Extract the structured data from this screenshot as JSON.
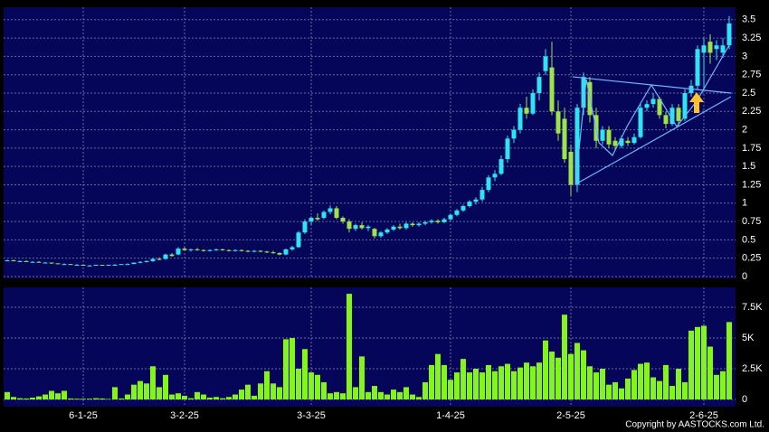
{
  "chart_data": [
    {
      "type": "candlestick",
      "up_color": "#2fe3f2",
      "down_color": "#9ee34a",
      "ylim": [
        -0.025,
        3.67
      ],
      "yticks": [
        0,
        0.25,
        0.5,
        0.75,
        1,
        1.25,
        1.5,
        1.75,
        2,
        2.25,
        2.5,
        2.75,
        3,
        3.25,
        3.5
      ],
      "grid": true,
      "ohlc": [
        [
          0.22,
          0.23,
          0.21,
          0.22
        ],
        [
          0.22,
          0.23,
          0.21,
          0.21
        ],
        [
          0.21,
          0.22,
          0.2,
          0.21
        ],
        [
          0.21,
          0.22,
          0.2,
          0.2
        ],
        [
          0.2,
          0.21,
          0.19,
          0.2
        ],
        [
          0.2,
          0.21,
          0.19,
          0.19
        ],
        [
          0.19,
          0.2,
          0.18,
          0.19
        ],
        [
          0.19,
          0.19,
          0.17,
          0.18
        ],
        [
          0.18,
          0.18,
          0.17,
          0.17
        ],
        [
          0.17,
          0.18,
          0.16,
          0.17
        ],
        [
          0.17,
          0.17,
          0.16,
          0.16
        ],
        [
          0.16,
          0.17,
          0.15,
          0.16
        ],
        [
          0.16,
          0.16,
          0.15,
          0.15
        ],
        [
          0.15,
          0.16,
          0.15,
          0.15
        ],
        [
          0.15,
          0.16,
          0.15,
          0.16
        ],
        [
          0.16,
          0.16,
          0.15,
          0.15
        ],
        [
          0.15,
          0.16,
          0.15,
          0.16
        ],
        [
          0.16,
          0.17,
          0.15,
          0.16
        ],
        [
          0.16,
          0.17,
          0.16,
          0.17
        ],
        [
          0.17,
          0.18,
          0.16,
          0.17
        ],
        [
          0.17,
          0.19,
          0.17,
          0.19
        ],
        [
          0.19,
          0.21,
          0.18,
          0.2
        ],
        [
          0.2,
          0.22,
          0.19,
          0.21
        ],
        [
          0.21,
          0.25,
          0.2,
          0.24
        ],
        [
          0.24,
          0.26,
          0.22,
          0.23
        ],
        [
          0.24,
          0.31,
          0.23,
          0.3
        ],
        [
          0.3,
          0.32,
          0.27,
          0.28
        ],
        [
          0.3,
          0.4,
          0.29,
          0.38
        ],
        [
          0.38,
          0.4,
          0.35,
          0.36
        ],
        [
          0.36,
          0.38,
          0.34,
          0.37
        ],
        [
          0.37,
          0.39,
          0.35,
          0.36
        ],
        [
          0.36,
          0.37,
          0.34,
          0.35
        ],
        [
          0.35,
          0.37,
          0.34,
          0.36
        ],
        [
          0.36,
          0.38,
          0.35,
          0.37
        ],
        [
          0.37,
          0.38,
          0.35,
          0.36
        ],
        [
          0.36,
          0.37,
          0.34,
          0.35
        ],
        [
          0.35,
          0.37,
          0.34,
          0.36
        ],
        [
          0.36,
          0.37,
          0.34,
          0.35
        ],
        [
          0.35,
          0.36,
          0.33,
          0.34
        ],
        [
          0.34,
          0.36,
          0.33,
          0.35
        ],
        [
          0.35,
          0.36,
          0.33,
          0.34
        ],
        [
          0.34,
          0.35,
          0.32,
          0.33
        ],
        [
          0.33,
          0.35,
          0.31,
          0.32
        ],
        [
          0.32,
          0.33,
          0.29,
          0.3
        ],
        [
          0.3,
          0.38,
          0.29,
          0.37
        ],
        [
          0.37,
          0.42,
          0.35,
          0.4
        ],
        [
          0.4,
          0.62,
          0.39,
          0.6
        ],
        [
          0.6,
          0.78,
          0.58,
          0.75
        ],
        [
          0.75,
          0.82,
          0.7,
          0.8
        ],
        [
          0.8,
          0.86,
          0.76,
          0.78
        ],
        [
          0.8,
          0.9,
          0.78,
          0.88
        ],
        [
          0.88,
          0.97,
          0.85,
          0.93
        ],
        [
          0.93,
          0.96,
          0.78,
          0.8
        ],
        [
          0.8,
          0.82,
          0.72,
          0.75
        ],
        [
          0.75,
          0.78,
          0.6,
          0.65
        ],
        [
          0.65,
          0.72,
          0.62,
          0.7
        ],
        [
          0.7,
          0.74,
          0.64,
          0.66
        ],
        [
          0.66,
          0.7,
          0.62,
          0.68
        ],
        [
          0.65,
          0.66,
          0.52,
          0.55
        ],
        [
          0.55,
          0.62,
          0.53,
          0.6
        ],
        [
          0.6,
          0.66,
          0.58,
          0.64
        ],
        [
          0.64,
          0.7,
          0.62,
          0.68
        ],
        [
          0.68,
          0.72,
          0.64,
          0.66
        ],
        [
          0.66,
          0.74,
          0.64,
          0.72
        ],
        [
          0.72,
          0.74,
          0.68,
          0.7
        ],
        [
          0.7,
          0.74,
          0.68,
          0.72
        ],
        [
          0.72,
          0.76,
          0.7,
          0.74
        ],
        [
          0.74,
          0.78,
          0.72,
          0.76
        ],
        [
          0.76,
          0.78,
          0.72,
          0.74
        ],
        [
          0.74,
          0.8,
          0.73,
          0.78
        ],
        [
          0.78,
          0.86,
          0.76,
          0.84
        ],
        [
          0.84,
          0.92,
          0.82,
          0.9
        ],
        [
          0.9,
          0.98,
          0.88,
          0.96
        ],
        [
          0.96,
          1.04,
          0.94,
          1.02
        ],
        [
          1.02,
          1.08,
          0.98,
          1.05
        ],
        [
          1.05,
          1.22,
          1.02,
          1.18
        ],
        [
          1.18,
          1.38,
          1.15,
          1.35
        ],
        [
          1.35,
          1.45,
          1.3,
          1.4
        ],
        [
          1.4,
          1.65,
          1.38,
          1.6
        ],
        [
          1.6,
          1.92,
          1.55,
          1.88
        ],
        [
          1.88,
          2.05,
          1.82,
          2.0
        ],
        [
          2.0,
          2.35,
          1.95,
          2.3
        ],
        [
          2.3,
          2.45,
          2.15,
          2.22
        ],
        [
          2.22,
          2.55,
          2.2,
          2.5
        ],
        [
          2.5,
          2.78,
          2.4,
          2.72
        ],
        [
          2.8,
          3.1,
          2.75,
          3.0
        ],
        [
          2.85,
          3.2,
          2.2,
          2.25
        ],
        [
          2.25,
          2.4,
          1.85,
          1.95
        ],
        [
          2.15,
          2.3,
          1.55,
          1.6
        ],
        [
          1.7,
          1.8,
          1.1,
          1.25
        ],
        [
          1.25,
          2.35,
          1.15,
          2.3
        ],
        [
          2.3,
          2.78,
          2.2,
          2.72
        ],
        [
          2.65,
          2.72,
          2.1,
          2.2
        ],
        [
          2.2,
          2.3,
          1.75,
          1.85
        ],
        [
          1.85,
          2.05,
          1.8,
          2.0
        ],
        [
          2.0,
          2.05,
          1.75,
          1.8
        ],
        [
          1.85,
          1.9,
          1.72,
          1.78
        ],
        [
          1.78,
          1.92,
          1.75,
          1.88
        ],
        [
          1.85,
          1.9,
          1.78,
          1.82
        ],
        [
          1.82,
          1.95,
          1.8,
          1.9
        ],
        [
          1.9,
          2.35,
          1.88,
          2.3
        ],
        [
          2.3,
          2.4,
          2.25,
          2.35
        ],
        [
          2.35,
          2.5,
          2.3,
          2.42
        ],
        [
          2.42,
          2.45,
          2.15,
          2.2
        ],
        [
          2.2,
          2.25,
          2.02,
          2.08
        ],
        [
          2.08,
          2.35,
          2.05,
          2.3
        ],
        [
          2.3,
          2.35,
          2.05,
          2.12
        ],
        [
          2.15,
          2.55,
          2.12,
          2.5
        ],
        [
          2.5,
          2.68,
          2.45,
          2.6
        ],
        [
          2.6,
          3.15,
          2.55,
          3.1
        ],
        [
          3.05,
          3.25,
          2.55,
          3.15
        ],
        [
          3.2,
          3.3,
          2.9,
          3.05
        ],
        [
          3.1,
          3.22,
          2.95,
          3.15
        ],
        [
          3.05,
          3.25,
          2.98,
          3.15
        ],
        [
          3.15,
          3.55,
          3.1,
          3.45
        ]
      ]
    },
    {
      "type": "bar",
      "color": "#84f51c",
      "ylim": [
        -590,
        9120
      ],
      "yticks": [
        0,
        {
          "value": 2500,
          "label": "2.5K"
        },
        {
          "value": 5000,
          "label": "5K"
        },
        {
          "value": 7500,
          "label": "7.5K"
        }
      ],
      "grid": true,
      "categories": [
        null,
        null,
        null,
        null,
        null,
        null,
        null,
        null,
        null,
        null,
        null,
        null,
        "6-1-25",
        null,
        null,
        null,
        null,
        null,
        null,
        null,
        null,
        null,
        null,
        null,
        null,
        null,
        null,
        null,
        "3-2-25",
        null,
        null,
        null,
        null,
        null,
        null,
        null,
        null,
        null,
        null,
        null,
        null,
        null,
        null,
        null,
        null,
        null,
        null,
        null,
        "3-3-25",
        null,
        null,
        null,
        null,
        null,
        null,
        null,
        null,
        null,
        null,
        null,
        null,
        null,
        null,
        null,
        null,
        null,
        null,
        null,
        null,
        null,
        "1-4-25",
        null,
        null,
        null,
        null,
        null,
        null,
        null,
        null,
        null,
        null,
        null,
        null,
        null,
        null,
        null,
        null,
        null,
        null,
        "2-5-25",
        null,
        null,
        null,
        null,
        null,
        null,
        null,
        null,
        null,
        null,
        null,
        null,
        null,
        null,
        null,
        null,
        null,
        null,
        null,
        null,
        "2-6-25",
        null,
        null,
        null,
        null
      ],
      "values": [
        600,
        200,
        100,
        80,
        150,
        250,
        400,
        700,
        500,
        700,
        80,
        60,
        60,
        60,
        100,
        80,
        40,
        1000,
        80,
        400,
        1200,
        1500,
        1300,
        2700,
        1000,
        2000,
        400,
        500,
        300,
        100,
        600,
        400,
        150,
        200,
        100,
        200,
        400,
        800,
        1200,
        300,
        1300,
        2300,
        1300,
        1000,
        4900,
        5000,
        2500,
        4100,
        2200,
        2000,
        1400,
        500,
        600,
        500,
        8600,
        1000,
        3500,
        600,
        1100,
        600,
        400,
        800,
        600,
        1000,
        400,
        200,
        1400,
        2800,
        3700,
        2800,
        1600,
        2200,
        3300,
        2200,
        2500,
        2200,
        2800,
        2300,
        2700,
        2900,
        2300,
        2600,
        3000,
        2700,
        3000,
        4800,
        3900,
        3400,
        6900,
        3700,
        4600,
        4000,
        2700,
        2200,
        2500,
        1200,
        1400,
        900,
        1700,
        2400,
        2900,
        3000,
        1800,
        1500,
        2800,
        1100,
        2500,
        1400,
        5600,
        5900,
        6000,
        4300,
        2000,
        2300,
        6300
      ]
    }
  ],
  "copyright": "Copyright by AASTOCKS.com Ltd."
}
